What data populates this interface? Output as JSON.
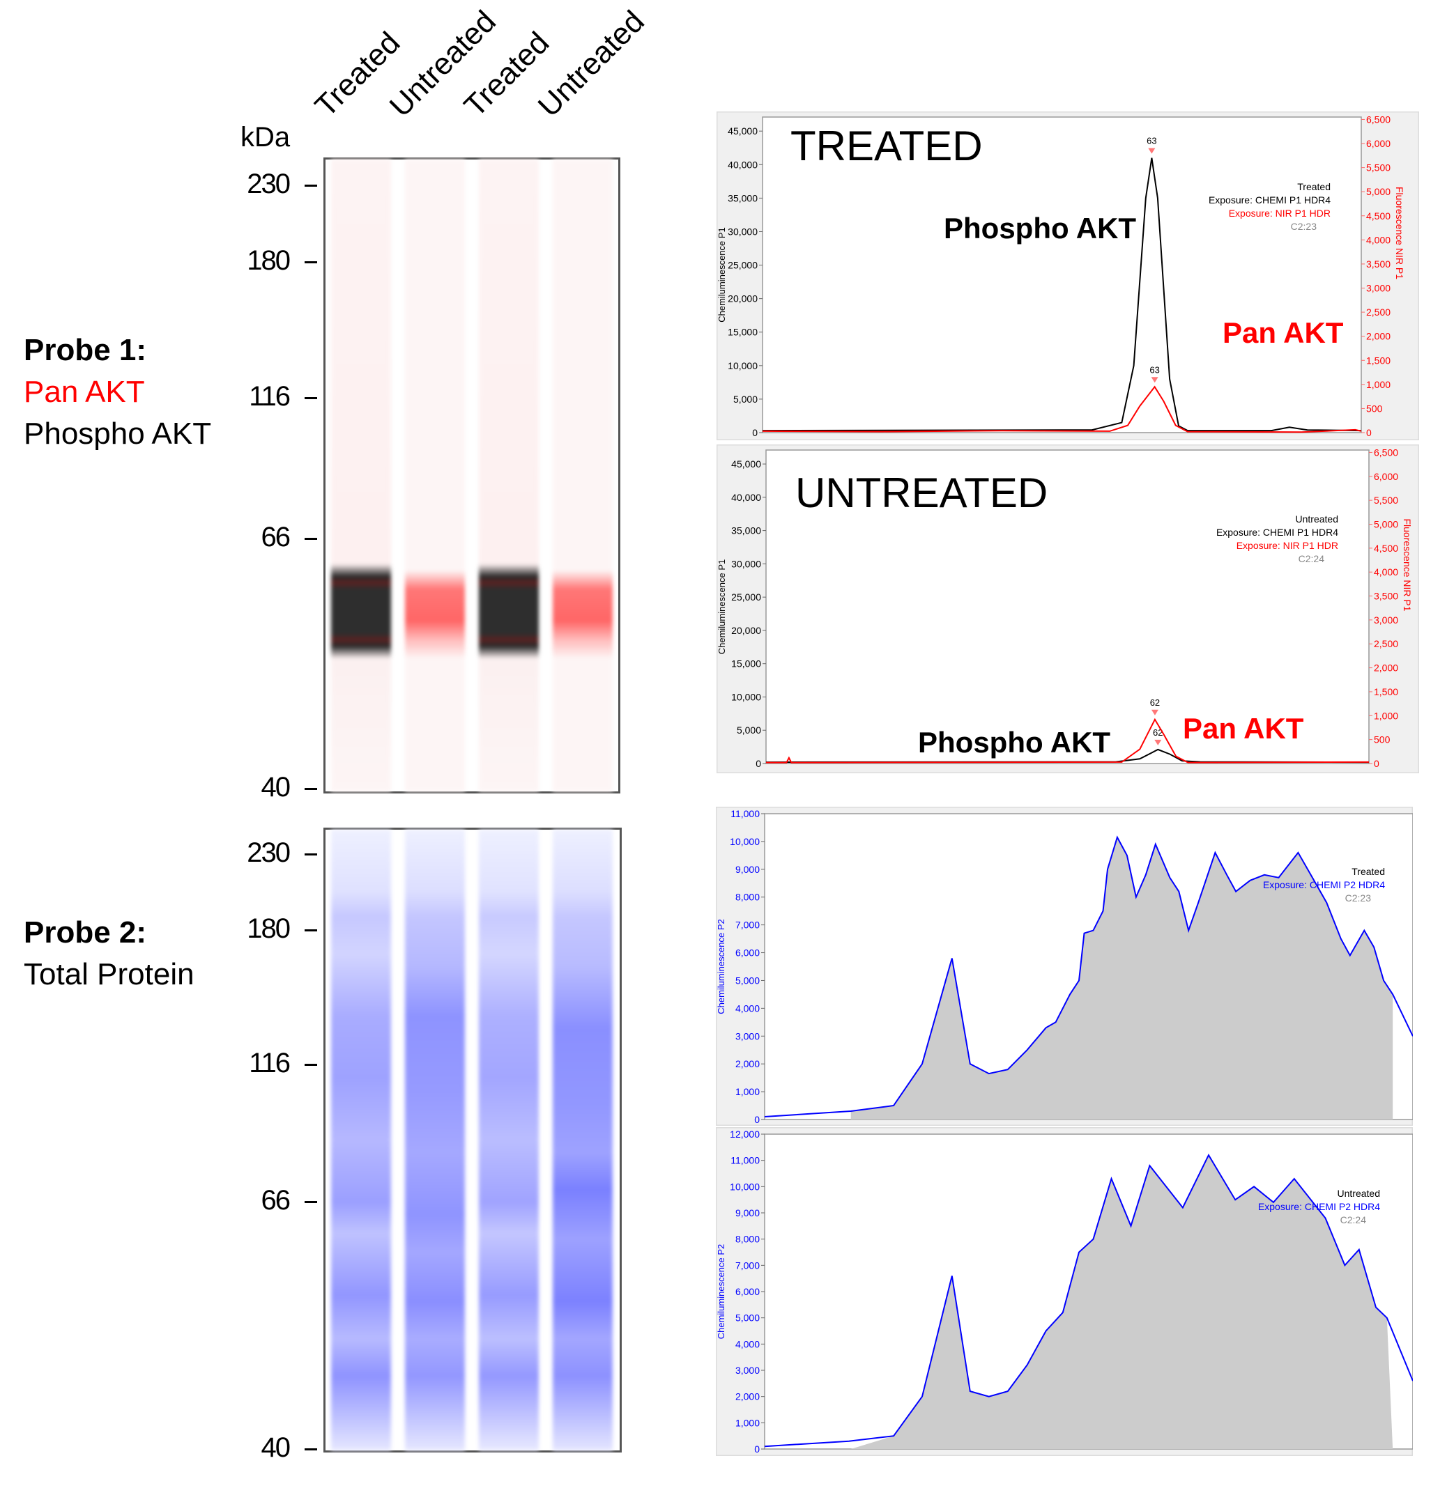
{
  "lanes": [
    "Treated",
    "Untreated",
    "Treated",
    "Untreated"
  ],
  "kda_label": "kDa",
  "markers": [
    "230",
    "180",
    "116",
    "66",
    "40"
  ],
  "probe1": {
    "title": "Probe 1:",
    "line1": "Pan AKT",
    "line2": "Phospho AKT"
  },
  "probe2": {
    "title": "Probe 2:",
    "line1": "Total Protein"
  },
  "colors": {
    "chemi": "#000000",
    "nir": "#ff0000",
    "p2": "#0000ff",
    "fill": "#cccccc",
    "accent_red": "#ff0000"
  },
  "chart_data": [
    {
      "type": "line",
      "overlay_title": "TREATED",
      "ylabel": "Chemiluminescence P1",
      "ylabel_right": "Fluorescence NIR P1",
      "ylim": [
        0,
        47100
      ],
      "ylim_right": [
        0,
        6550
      ],
      "yticks": [
        0,
        5000,
        10000,
        15000,
        20000,
        25000,
        30000,
        35000,
        40000,
        45000
      ],
      "yticks_right": [
        0,
        500,
        1000,
        1500,
        2000,
        2500,
        3000,
        3500,
        4000,
        4500,
        5000,
        5500,
        6000,
        6500
      ],
      "legend": [
        "Treated",
        "Exposure: CHEMI P1 HDR4",
        "Exposure: NIR P1 HDR",
        "C2:23"
      ],
      "annotations": [
        {
          "text": "Phospho AKT",
          "color": "#000000"
        },
        {
          "text": "Pan AKT",
          "color": "#ff0000"
        }
      ],
      "series": [
        {
          "axis": "left",
          "color": "#000000",
          "peak_label": "63",
          "peak_x": 65,
          "points": [
            [
              0,
              300
            ],
            [
              55,
              400
            ],
            [
              60,
              1500
            ],
            [
              62,
              10000
            ],
            [
              64,
              35000
            ],
            [
              65,
              41000
            ],
            [
              66,
              35000
            ],
            [
              68,
              8000
            ],
            [
              69.5,
              1000
            ],
            [
              71,
              300
            ],
            [
              85,
              300
            ],
            [
              88,
              800
            ],
            [
              91,
              400
            ],
            [
              100,
              300
            ]
          ]
        },
        {
          "axis": "right",
          "color": "#ff0000",
          "peak_label": "63",
          "peak_x": 65.5,
          "points": [
            [
              0,
              30
            ],
            [
              20,
              20
            ],
            [
              40,
              40
            ],
            [
              58,
              30
            ],
            [
              61,
              150
            ],
            [
              63,
              550
            ],
            [
              65.5,
              950
            ],
            [
              67,
              650
            ],
            [
              69,
              150
            ],
            [
              71,
              20
            ],
            [
              90,
              10
            ],
            [
              99,
              60
            ],
            [
              100,
              30
            ]
          ]
        }
      ]
    },
    {
      "type": "line",
      "overlay_title": "UNTREATED",
      "ylabel": "Chemiluminescence P1",
      "ylabel_right": "Fluorescence NIR P1",
      "ylim": [
        0,
        47100
      ],
      "ylim_right": [
        0,
        6550
      ],
      "yticks": [
        0,
        5000,
        10000,
        15000,
        20000,
        25000,
        30000,
        35000,
        40000,
        45000
      ],
      "yticks_right": [
        0,
        500,
        1000,
        1500,
        2000,
        2500,
        3000,
        3500,
        4000,
        4500,
        5000,
        5500,
        6000,
        6500
      ],
      "legend": [
        "Untreated",
        "Exposure: CHEMI P1 HDR4",
        "Exposure: NIR P1 HDR",
        "C2:24"
      ],
      "annotations": [
        {
          "text": "Phospho AKT",
          "color": "#000000"
        },
        {
          "text": "Pan AKT",
          "color": "#ff0000"
        }
      ],
      "series": [
        {
          "axis": "left",
          "color": "#000000",
          "peak_label": "62",
          "peak_x": 65,
          "points": [
            [
              0,
              200
            ],
            [
              58,
              250
            ],
            [
              62,
              700
            ],
            [
              65,
              2100
            ],
            [
              67,
              1400
            ],
            [
              69,
              400
            ],
            [
              72,
              250
            ],
            [
              100,
              200
            ]
          ]
        },
        {
          "axis": "right",
          "color": "#ff0000",
          "peak_label": "62",
          "peak_x": 64.5,
          "points": [
            [
              0,
              20
            ],
            [
              3.4,
              20
            ],
            [
              3.8,
              120
            ],
            [
              4.2,
              20
            ],
            [
              59,
              30
            ],
            [
              62,
              300
            ],
            [
              64.5,
              920
            ],
            [
              66,
              600
            ],
            [
              68,
              150
            ],
            [
              70,
              20
            ],
            [
              100,
              30
            ]
          ]
        }
      ]
    },
    {
      "type": "area",
      "ylabel": "Chemiluminescence P2",
      "ylim": [
        0,
        11000
      ],
      "yticks": [
        0,
        1000,
        2000,
        3000,
        4000,
        5000,
        6000,
        7000,
        8000,
        9000,
        10000,
        11000
      ],
      "legend": [
        "Treated",
        "Exposure: CHEMI P2 HDR4",
        "C2:23"
      ],
      "series": [
        {
          "axis": "left",
          "color": "#0000ff",
          "fill": "#cccccc",
          "points": [
            [
              0,
              100
            ],
            [
              13.3,
              300
            ],
            [
              19.9,
              500
            ],
            [
              24.3,
              2000
            ],
            [
              28.9,
              5800
            ],
            [
              31.7,
              2000
            ],
            [
              34.6,
              1650
            ],
            [
              37.5,
              1800
            ],
            [
              40.5,
              2500
            ],
            [
              43.4,
              3300
            ],
            [
              44.9,
              3500
            ],
            [
              47.1,
              4500
            ],
            [
              48.5,
              5000
            ],
            [
              49.3,
              6700
            ],
            [
              50.7,
              6800
            ],
            [
              52.2,
              7500
            ],
            [
              52.9,
              9000
            ],
            [
              54.4,
              10150
            ],
            [
              55.9,
              9500
            ],
            [
              57.3,
              8000
            ],
            [
              58.8,
              8800
            ],
            [
              60.3,
              9900
            ],
            [
              62.5,
              8700
            ],
            [
              63.9,
              8200
            ],
            [
              65.4,
              6800
            ],
            [
              66.9,
              7800
            ],
            [
              69.5,
              9600
            ],
            [
              71.3,
              8800
            ],
            [
              72.7,
              8200
            ],
            [
              74.9,
              8600
            ],
            [
              77.1,
              8800
            ],
            [
              79.3,
              8700
            ],
            [
              82.3,
              9600
            ],
            [
              84.5,
              8700
            ],
            [
              86.7,
              7800
            ],
            [
              88.9,
              6500
            ],
            [
              90.3,
              5900
            ],
            [
              92.5,
              6800
            ],
            [
              94,
              6200
            ],
            [
              95.5,
              5000
            ],
            [
              96.9,
              4500
            ],
            [
              100,
              3000
            ]
          ]
        }
      ]
    },
    {
      "type": "area",
      "ylabel": "Chemiluminescence P2",
      "ylim": [
        0,
        12000
      ],
      "yticks": [
        0,
        1000,
        2000,
        3000,
        4000,
        5000,
        6000,
        7000,
        8000,
        9000,
        10000,
        11000,
        12000
      ],
      "legend": [
        "Untreated",
        "Exposure: CHEMI P2 HDR4",
        "C2:24"
      ],
      "series": [
        {
          "axis": "left",
          "color": "#0000ff",
          "fill": "#cccccc",
          "points": [
            [
              0,
              100
            ],
            [
              13,
              300
            ],
            [
              19.9,
              500
            ],
            [
              24.3,
              2000
            ],
            [
              28.9,
              6600
            ],
            [
              31.7,
              2200
            ],
            [
              34.6,
              2000
            ],
            [
              37.5,
              2200
            ],
            [
              40.5,
              3200
            ],
            [
              43.4,
              4500
            ],
            [
              46,
              5200
            ],
            [
              48.5,
              7500
            ],
            [
              50.7,
              8000
            ],
            [
              53.5,
              10300
            ],
            [
              56.5,
              8500
            ],
            [
              59.4,
              10800
            ],
            [
              64.5,
              9200
            ],
            [
              68.5,
              11200
            ],
            [
              72.6,
              9500
            ],
            [
              75.5,
              10000
            ],
            [
              78.5,
              9400
            ],
            [
              81.7,
              10300
            ],
            [
              86.5,
              8800
            ],
            [
              89.5,
              7000
            ],
            [
              91.7,
              7600
            ],
            [
              94.3,
              5400
            ],
            [
              96,
              5000
            ],
            [
              100,
              2600
            ]
          ]
        }
      ]
    }
  ]
}
